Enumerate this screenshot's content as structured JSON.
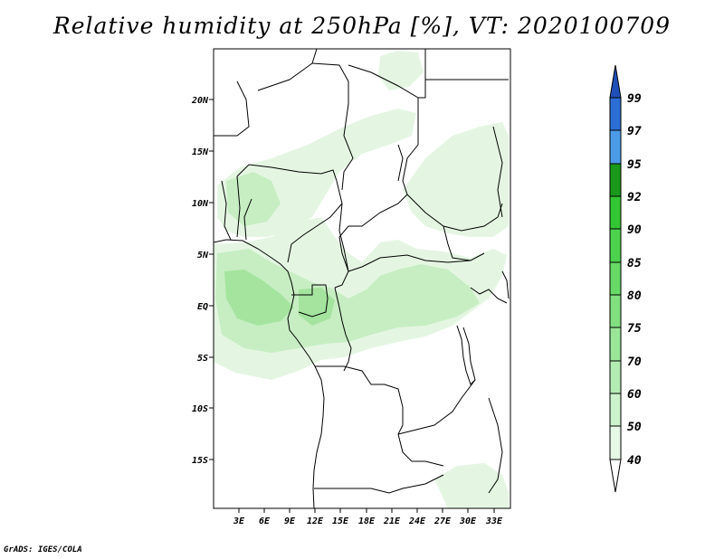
{
  "title": "Relative humidity at 250hPa [%], VT: 2020100709",
  "credit": "GrADS: IGES/COLA",
  "map": {
    "lat_ticks": [
      "20N",
      "15N",
      "10N",
      "5N",
      "EQ",
      "5S",
      "10S",
      "15S"
    ],
    "lon_ticks": [
      "3E",
      "6E",
      "9E",
      "12E",
      "15E",
      "18E",
      "21E",
      "24E",
      "27E",
      "30E",
      "33E"
    ],
    "lon_values": [
      3,
      6,
      9,
      12,
      15,
      18,
      21,
      24,
      27,
      30,
      33
    ],
    "lat_values": [
      20,
      15,
      10,
      5,
      0,
      -5,
      -10,
      -15
    ]
  },
  "colorbar": {
    "levels": [
      "40",
      "50",
      "60",
      "70",
      "75",
      "80",
      "85",
      "90",
      "92",
      "95",
      "97",
      "99"
    ],
    "colors": [
      "#ffffff",
      "#e6f8e6",
      "#ccf2cc",
      "#b3ecb3",
      "#99e699",
      "#80e080",
      "#66d966",
      "#4dd24d",
      "#33c633",
      "#1a991a",
      "#4c9be8",
      "#2a6ed6",
      "#1f4fb8"
    ]
  },
  "humidity_fill": {
    "light": "#e4f6e2",
    "mid": "#c6eec2",
    "strong": "#a4e49e"
  }
}
